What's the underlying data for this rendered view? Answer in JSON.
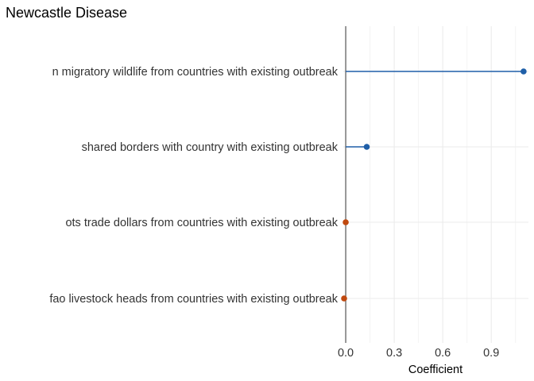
{
  "chart_data": {
    "type": "lollipop",
    "title": "Newcastle Disease",
    "xlabel": "Coefficient",
    "ylabel": "",
    "xlim": [
      -0.015,
      1.13
    ],
    "x_ticks": [
      0.0,
      0.3,
      0.6,
      0.9
    ],
    "x_tick_labels": [
      "0.0",
      "0.3",
      "0.6",
      "0.9"
    ],
    "grid": true,
    "legend": "none",
    "categories": [
      "n migratory wildlife from countries with existing outbreak",
      "shared borders with country with existing outbreak",
      "ots trade dollars from countries with existing outbreak",
      "fao livestock heads from countries with existing outbreak"
    ],
    "values": [
      1.1,
      0.13,
      0.0,
      -0.01
    ],
    "point_colors": [
      "#1f5fa8",
      "#1f5fa8",
      "#c0490f",
      "#c0490f"
    ],
    "colors": {
      "positive": "#1f5fa8",
      "negative": "#c0490f",
      "zero_line": "#555555",
      "grid_major": "#ebebeb",
      "grid_minor": "#f4f4f4"
    }
  }
}
